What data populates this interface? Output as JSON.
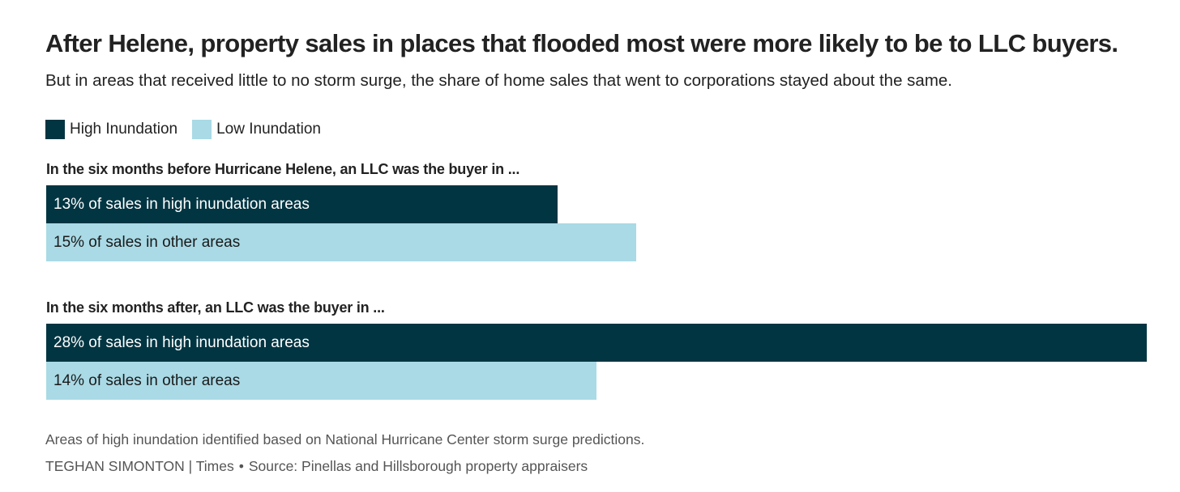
{
  "chart_data": {
    "type": "bar",
    "orientation": "horizontal",
    "title": "After Helene, property sales in places that flooded most were more likely to be to LLC buyers.",
    "subtitle": "But in areas that received little to no storm surge, the share of home sales that went to corporations stayed about the same.",
    "legend": [
      {
        "name": "High Inundation",
        "color": "#023542"
      },
      {
        "name": "Low Inundation",
        "color": "#a9dae6"
      }
    ],
    "groups": [
      {
        "label": "In the six months before Hurricane Helene, an LLC was the buyer in ...",
        "bars": [
          {
            "series": "High Inundation",
            "value": 13,
            "label": "13% of sales in high inundation areas"
          },
          {
            "series": "Low Inundation",
            "value": 15,
            "label": "15% of sales in other areas"
          }
        ]
      },
      {
        "label": "In the six months after, an LLC was the buyer in ...",
        "bars": [
          {
            "series": "High Inundation",
            "value": 28,
            "label": "28% of sales in high inundation areas"
          },
          {
            "series": "Low Inundation",
            "value": 14,
            "label": "14% of sales in other areas"
          }
        ]
      }
    ],
    "xlim": [
      0,
      28
    ],
    "unit": "%",
    "note": "Areas of high inundation identified based on National Hurricane Center storm surge predictions.",
    "credit": "TEGHAN SIMONTON | Times",
    "source": "Source: Pinellas and Hillsborough property appraisers"
  },
  "colors": {
    "high_text": "#ffffff",
    "low_text": "#1a1a1a"
  }
}
